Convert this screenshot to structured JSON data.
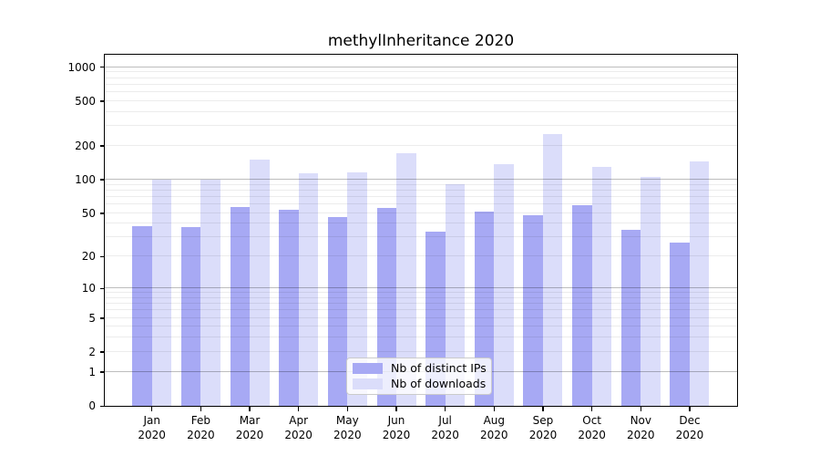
{
  "title": "methylInheritance 2020",
  "chart_data": {
    "type": "bar",
    "title": "methylInheritance 2020",
    "categories": [
      "Jan 2020",
      "Feb 2020",
      "Mar 2020",
      "Apr 2020",
      "May 2020",
      "Jun 2020",
      "Jul 2020",
      "Aug 2020",
      "Sep 2020",
      "Oct 2020",
      "Nov 2020",
      "Dec 2020"
    ],
    "series": [
      {
        "name": "Nb of distinct IPs",
        "key": "distinct-ips",
        "color": "#a7a9f4",
        "values": [
          38,
          37,
          57,
          54,
          46,
          56,
          34,
          52,
          48,
          59,
          35,
          27
        ]
      },
      {
        "name": "Nb of downloads",
        "key": "downloads",
        "color": "#dbddfa",
        "values": [
          100,
          100,
          150,
          114,
          115,
          172,
          91,
          138,
          255,
          130,
          105,
          145
        ]
      }
    ],
    "xlabel": "",
    "ylabel": "",
    "yscale": "log1p",
    "ylim": [
      0,
      1288
    ],
    "y_tick_values": [
      1000,
      500,
      200,
      100,
      50,
      20,
      10,
      5,
      2,
      1,
      0
    ],
    "y_major_grid": [
      1,
      10,
      100,
      1000
    ],
    "y_minor_grid": [
      2,
      3,
      4,
      5,
      6,
      7,
      8,
      9,
      20,
      30,
      40,
      50,
      60,
      70,
      80,
      90,
      200,
      300,
      400,
      500,
      600,
      700,
      800,
      900
    ],
    "grid": "horizontal",
    "legend_position": "lower center"
  },
  "legend": {
    "items": [
      {
        "label": "Nb of distinct IPs",
        "color": "#a7a9f4"
      },
      {
        "label": "Nb of downloads",
        "color": "#dbddfa"
      }
    ]
  }
}
